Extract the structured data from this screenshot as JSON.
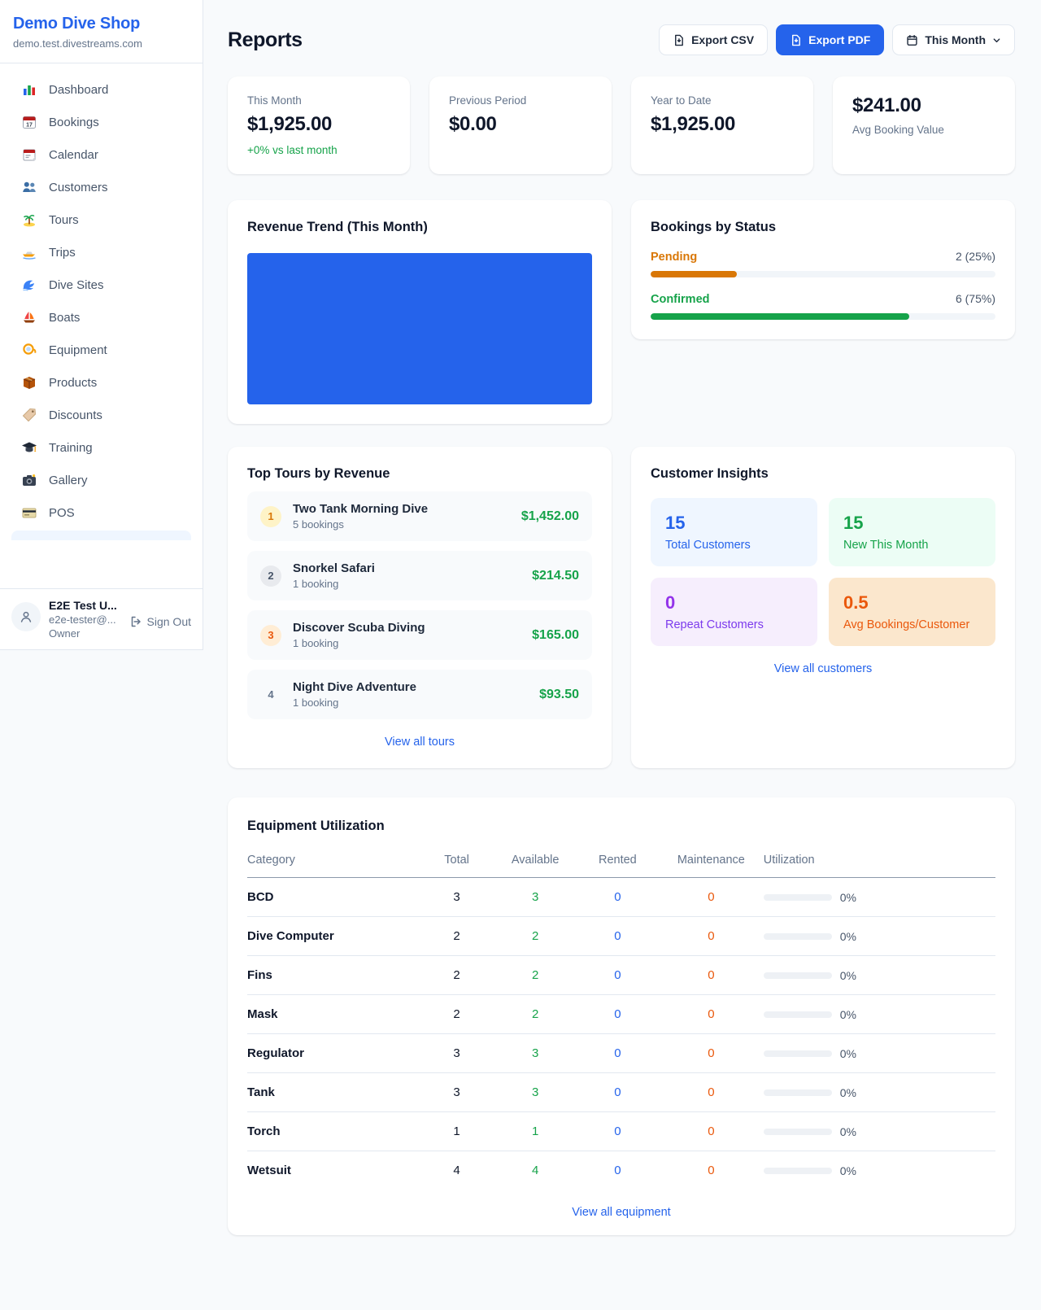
{
  "sidebar": {
    "title": "Demo Dive Shop",
    "subdomain": "demo.test.divestreams.com",
    "items": [
      {
        "icon": "dashboard-icon",
        "label": "Dashboard"
      },
      {
        "icon": "bookings-calendar-icon",
        "label": "Bookings"
      },
      {
        "icon": "calendar-icon",
        "label": "Calendar"
      },
      {
        "icon": "customers-icon",
        "label": "Customers"
      },
      {
        "icon": "tours-island-icon",
        "label": "Tours"
      },
      {
        "icon": "trips-boat-icon",
        "label": "Trips"
      },
      {
        "icon": "dive-sites-wave-icon",
        "label": "Dive Sites"
      },
      {
        "icon": "boats-sailboat-icon",
        "label": "Boats"
      },
      {
        "icon": "equipment-mask-icon",
        "label": "Equipment"
      },
      {
        "icon": "products-box-icon",
        "label": "Products"
      },
      {
        "icon": "discounts-tag-icon",
        "label": "Discounts"
      },
      {
        "icon": "training-cap-icon",
        "label": "Training"
      },
      {
        "icon": "gallery-camera-icon",
        "label": "Gallery"
      },
      {
        "icon": "pos-card-icon",
        "label": "POS"
      }
    ],
    "user": {
      "name": "E2E Test U...",
      "email": "e2e-tester@...",
      "role": "Owner",
      "sign_out": "Sign Out"
    }
  },
  "header": {
    "title": "Reports",
    "export_csv": "Export CSV",
    "export_pdf": "Export PDF",
    "period": "This Month"
  },
  "stats": {
    "this_month": {
      "label": "This Month",
      "value": "$1,925.00",
      "delta": "+0% vs last month"
    },
    "previous": {
      "label": "Previous Period",
      "value": "$0.00"
    },
    "ytd": {
      "label": "Year to Date",
      "value": "$1,925.00"
    },
    "avg": {
      "value": "$241.00",
      "label": "Avg Booking Value"
    }
  },
  "chart_data": {
    "type": "bar",
    "title": "Revenue Trend (This Month)",
    "fill_percent": 100,
    "color": "#2563eb"
  },
  "revenue_trend": {
    "title": "Revenue Trend (This Month)"
  },
  "bookings_status": {
    "title": "Bookings by Status",
    "rows": [
      {
        "label": "Pending",
        "value": "2 (25%)",
        "pct": 25,
        "color": "#d97706"
      },
      {
        "label": "Confirmed",
        "value": "6 (75%)",
        "pct": 75,
        "color": "#16a34a"
      }
    ]
  },
  "top_tours": {
    "title": "Top Tours by Revenue",
    "rows": [
      {
        "rank": "1",
        "name": "Two Tank Morning Dive",
        "sub": "5 bookings",
        "amount": "$1,452.00"
      },
      {
        "rank": "2",
        "name": "Snorkel Safari",
        "sub": "1 booking",
        "amount": "$214.50"
      },
      {
        "rank": "3",
        "name": "Discover Scuba Diving",
        "sub": "1 booking",
        "amount": "$165.00"
      },
      {
        "rank": "4",
        "name": "Night Dive Adventure",
        "sub": "1 booking",
        "amount": "$93.50"
      }
    ],
    "link": "View all tours"
  },
  "customer_insights": {
    "title": "Customer Insights",
    "tiles": [
      {
        "value": "15",
        "label": "Total Customers"
      },
      {
        "value": "15",
        "label": "New This Month"
      },
      {
        "value": "0",
        "label": "Repeat Customers"
      },
      {
        "value": "0.5",
        "label": "Avg Bookings/Customer"
      }
    ],
    "link": "View all customers"
  },
  "equipment": {
    "title": "Equipment Utilization",
    "columns": [
      "Category",
      "Total",
      "Available",
      "Rented",
      "Maintenance",
      "Utilization"
    ],
    "rows": [
      {
        "category": "BCD",
        "total": "3",
        "available": "3",
        "rented": "0",
        "maintenance": "0",
        "utilization": "0%",
        "pct": 0
      },
      {
        "category": "Dive Computer",
        "total": "2",
        "available": "2",
        "rented": "0",
        "maintenance": "0",
        "utilization": "0%",
        "pct": 0
      },
      {
        "category": "Fins",
        "total": "2",
        "available": "2",
        "rented": "0",
        "maintenance": "0",
        "utilization": "0%",
        "pct": 0
      },
      {
        "category": "Mask",
        "total": "2",
        "available": "2",
        "rented": "0",
        "maintenance": "0",
        "utilization": "0%",
        "pct": 0
      },
      {
        "category": "Regulator",
        "total": "3",
        "available": "3",
        "rented": "0",
        "maintenance": "0",
        "utilization": "0%",
        "pct": 0
      },
      {
        "category": "Tank",
        "total": "3",
        "available": "3",
        "rented": "0",
        "maintenance": "0",
        "utilization": "0%",
        "pct": 0
      },
      {
        "category": "Torch",
        "total": "1",
        "available": "1",
        "rented": "0",
        "maintenance": "0",
        "utilization": "0%",
        "pct": 0
      },
      {
        "category": "Wetsuit",
        "total": "4",
        "available": "4",
        "rented": "0",
        "maintenance": "0",
        "utilization": "0%",
        "pct": 0
      }
    ],
    "link": "View all equipment"
  }
}
